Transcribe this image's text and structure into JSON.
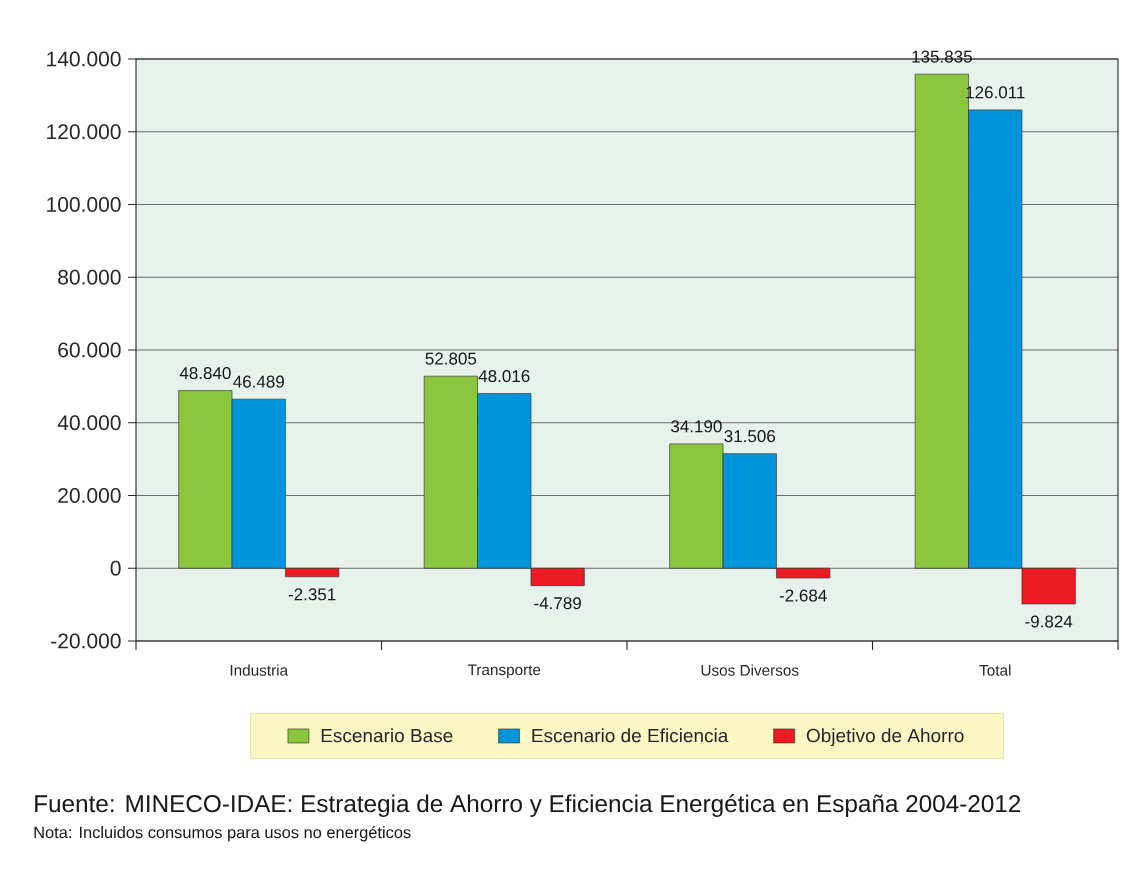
{
  "chart_data": {
    "type": "bar",
    "categories": [
      "Industria",
      "Transporte",
      "Usos Diversos",
      "Total"
    ],
    "series": [
      {
        "name": "Escenario Base",
        "color": "#8cc63f",
        "values": [
          48840,
          52805,
          34190,
          135835
        ],
        "value_labels": [
          "48.840",
          "52.805",
          "34.190",
          "135.835"
        ]
      },
      {
        "name": "Escenario de Eficiencia",
        "color": "#0095da",
        "values": [
          46489,
          48016,
          31506,
          126011
        ],
        "value_labels": [
          "46.489",
          "48.016",
          "31.506",
          "126.011"
        ]
      },
      {
        "name": "Objetivo de Ahorro",
        "color": "#ed1c24",
        "values": [
          -2351,
          -4789,
          -2684,
          -9824
        ],
        "value_labels": [
          "-2.351",
          "-4.789",
          "-2.684",
          "-9.824"
        ]
      }
    ],
    "ylim": [
      -20000,
      140000
    ],
    "yticks": [
      {
        "value": -20000,
        "label": "-20.000"
      },
      0,
      {
        "value": 20000,
        "label": "20.000"
      },
      {
        "value": 40000,
        "label": "40.000"
      },
      {
        "value": 60000,
        "label": "60.000"
      },
      {
        "value": 80000,
        "label": "80.000"
      },
      {
        "value": 100000,
        "label": "100.000"
      },
      {
        "value": 120000,
        "label": "120.000"
      },
      {
        "value": 140000,
        "label": "140.000"
      }
    ],
    "grid": "y",
    "legend": "bottom",
    "annotations": [
      "Fuente: MINECO-IDAE: Estrategia de Ahorro y Eficiencia Energética en España 2004-2012",
      "Nota: Incluidos consumos para usos no energéticos"
    ]
  }
}
